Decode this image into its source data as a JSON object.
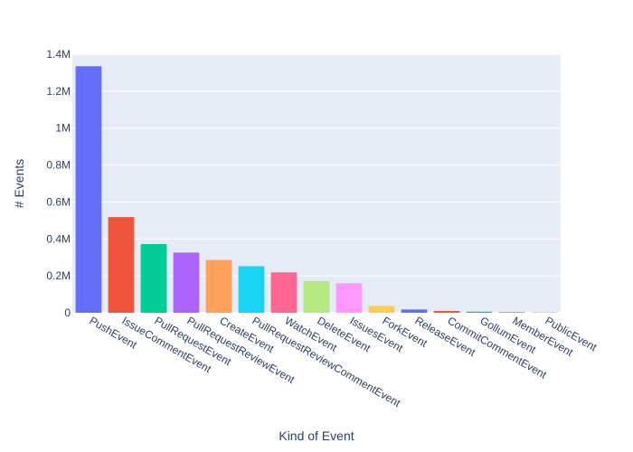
{
  "chart_data": {
    "type": "bar",
    "title": "",
    "xlabel": "Kind of Event",
    "ylabel": "# Events",
    "categories": [
      "PushEvent",
      "IssueCommentEvent",
      "PullRequestEvent",
      "PullRequestReviewEvent",
      "CreateEvent",
      "PullRequestReviewCommentEvent",
      "WatchEvent",
      "DeleteEvent",
      "IssuesEvent",
      "ForkEvent",
      "ReleaseEvent",
      "CommitCommentEvent",
      "GollumEvent",
      "MemberEvent",
      "PublicEvent"
    ],
    "values": [
      1335000,
      518000,
      372000,
      326000,
      286000,
      252000,
      219000,
      172000,
      160000,
      37000,
      18000,
      10000,
      6000,
      3500,
      2500
    ],
    "colors": [
      "#636efa",
      "#EF553B",
      "#00cc96",
      "#ab63fa",
      "#FFA15A",
      "#19d3f3",
      "#FF6692",
      "#B6E880",
      "#FF97FF",
      "#FECB52",
      "#636efa",
      "#EF553B",
      "#00cc96",
      "#ab63fa",
      "#FFA15A"
    ],
    "yticks": [
      {
        "value": 0,
        "label": "0"
      },
      {
        "value": 200000,
        "label": "0.2M"
      },
      {
        "value": 400000,
        "label": "0.4M"
      },
      {
        "value": 600000,
        "label": "0.6M"
      },
      {
        "value": 800000,
        "label": "0.8M"
      },
      {
        "value": 1000000,
        "label": "1M"
      },
      {
        "value": 1200000,
        "label": "1.2M"
      },
      {
        "value": 1400000,
        "label": "1.4M"
      }
    ],
    "ylim": [
      0,
      1400000
    ],
    "grid": true,
    "plot_background": "#e5ecf6",
    "legend": "none"
  }
}
